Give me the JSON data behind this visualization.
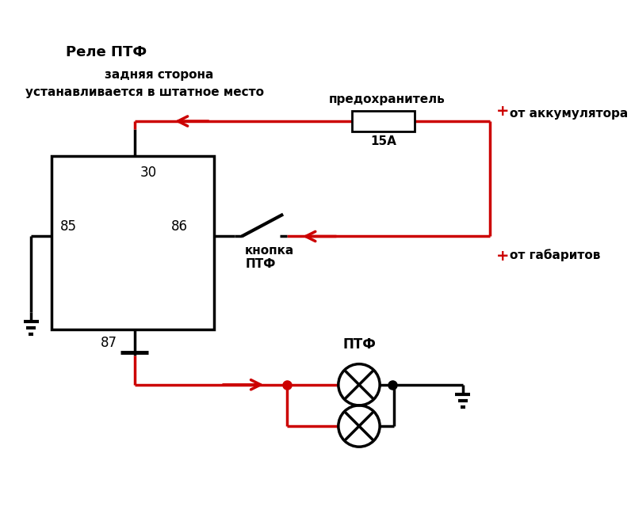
{
  "title": "Реле ПТФ",
  "subtitle1": "задняя сторона",
  "subtitle2": "устанавливается в штатное место",
  "fuse_label": "предохранитель",
  "fuse_value": "15А",
  "battery_label": "от аккумулятора",
  "button_label": "кнопка\nПТФ",
  "gabarit_label": "от габаритов",
  "ptf_label": "ПТФ",
  "pin30": "30",
  "pin85": "85",
  "pin86": "86",
  "pin87": "87",
  "red": "#cc0000",
  "black": "#000000",
  "bg": "#ffffff",
  "lw": 2.5,
  "figsize": [
    7.96,
    6.44
  ],
  "dpi": 100
}
